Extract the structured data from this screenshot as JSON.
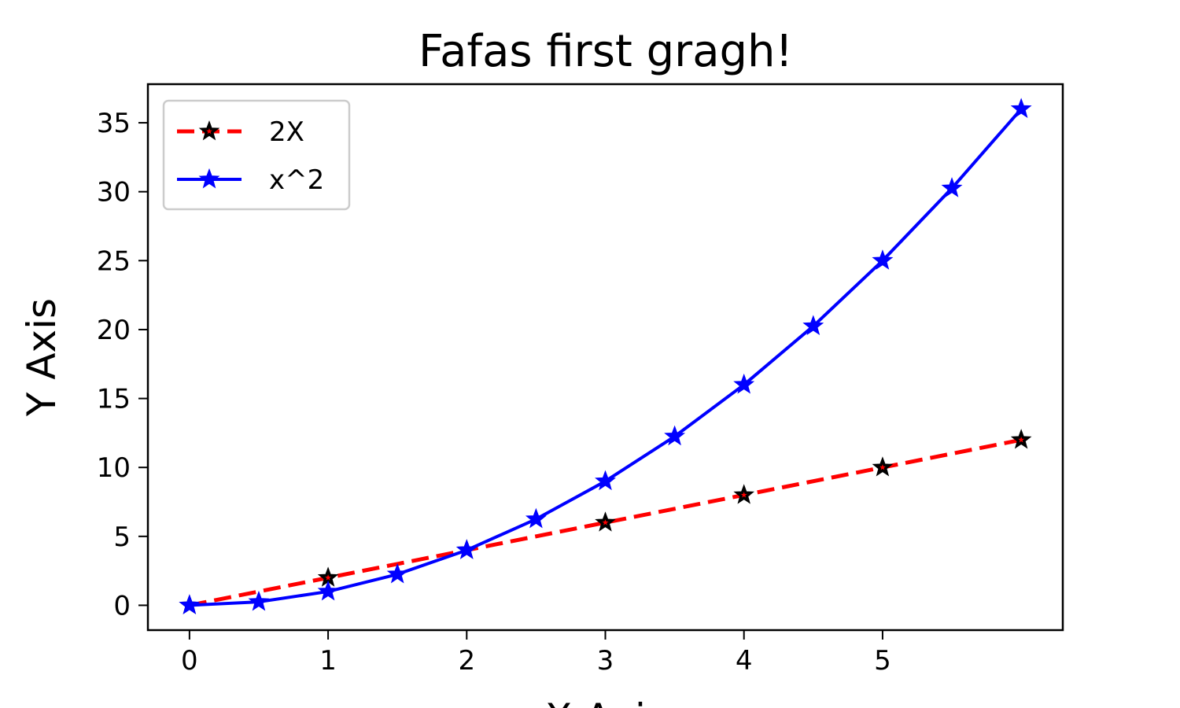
{
  "chart_data": {
    "type": "line",
    "title": "Fafas first gragh!",
    "xlabel": "X Axis",
    "ylabel": "Y Axis",
    "xlim": [
      -0.3,
      6.3
    ],
    "ylim": [
      -1.8,
      37.8
    ],
    "xticks": [
      0,
      1,
      2,
      3,
      4,
      5
    ],
    "yticks": [
      0,
      5,
      10,
      15,
      20,
      25,
      30,
      35
    ],
    "grid": false,
    "legend_position": "top-left",
    "series": [
      {
        "name": "2X",
        "color": "#ff0000",
        "marker_color": "#000000",
        "line_style": "dashed",
        "marker": "star",
        "x": [
          0,
          1,
          2,
          3,
          4,
          5,
          6
        ],
        "y": [
          0,
          2,
          4,
          6,
          8,
          10,
          12
        ]
      },
      {
        "name": "x^2",
        "color": "#0000ff",
        "marker_color": "#0000ff",
        "line_style": "solid",
        "marker": "star",
        "x": [
          0,
          0.5,
          1,
          1.5,
          2,
          2.5,
          3,
          3.5,
          4,
          4.5,
          5,
          5.5,
          6
        ],
        "y": [
          0,
          0.25,
          1,
          2.25,
          4,
          6.25,
          9,
          12.25,
          16,
          20.25,
          25,
          30.25,
          36
        ]
      }
    ]
  }
}
